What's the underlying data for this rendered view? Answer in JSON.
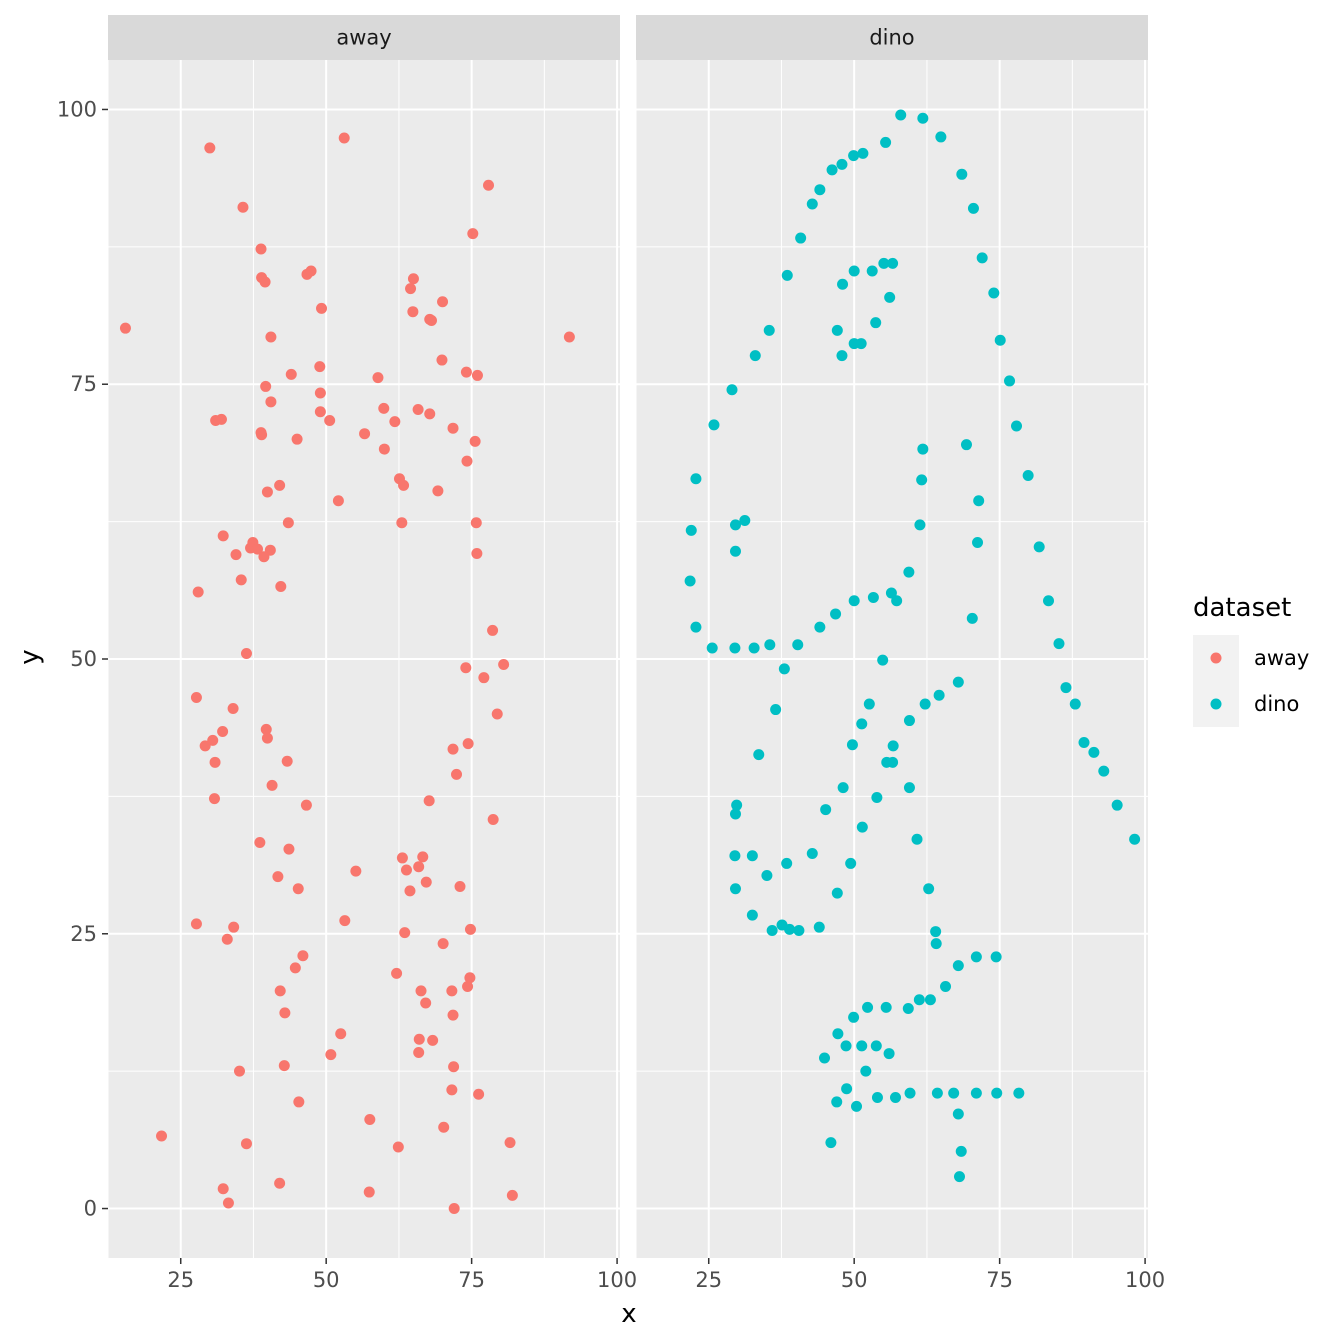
{
  "chart_data": {
    "type": "scatter",
    "facets": [
      "away",
      "dino"
    ],
    "xlabel": "x",
    "ylabel": "y",
    "xlim": [
      12.5,
      100.5
    ],
    "ylim": [
      -4.5,
      104.5
    ],
    "xticks": [
      25,
      50,
      75,
      100
    ],
    "yticks": [
      0,
      25,
      50,
      75,
      100
    ],
    "grid": true,
    "legend": {
      "title": "dataset",
      "position": "right",
      "entries": [
        {
          "label": "away",
          "color": "#F8766D"
        },
        {
          "label": "dino",
          "color": "#00BFC4"
        }
      ]
    },
    "series": [
      {
        "name": "away",
        "color": "#F8766D",
        "points": [
          [
            15.5,
            80.1
          ],
          [
            30.0,
            96.5
          ],
          [
            35.7,
            91.1
          ],
          [
            53.1,
            97.4
          ],
          [
            77.9,
            93.1
          ],
          [
            91.8,
            79.3
          ],
          [
            38.8,
            87.3
          ],
          [
            38.9,
            84.7
          ],
          [
            39.5,
            84.3
          ],
          [
            46.7,
            85.0
          ],
          [
            47.4,
            85.3
          ],
          [
            49.2,
            81.9
          ],
          [
            40.5,
            79.3
          ],
          [
            65.0,
            84.6
          ],
          [
            64.5,
            83.7
          ],
          [
            70.0,
            82.5
          ],
          [
            64.9,
            81.6
          ],
          [
            67.8,
            80.9
          ],
          [
            68.1,
            80.8
          ],
          [
            75.2,
            88.7
          ],
          [
            48.9,
            76.6
          ],
          [
            44.0,
            75.9
          ],
          [
            39.6,
            74.8
          ],
          [
            49.0,
            74.2
          ],
          [
            40.5,
            73.4
          ],
          [
            49.0,
            72.5
          ],
          [
            50.6,
            71.7
          ],
          [
            31.0,
            71.7
          ],
          [
            32.0,
            71.8
          ],
          [
            38.8,
            70.6
          ],
          [
            38.9,
            70.4
          ],
          [
            45.0,
            70.0
          ],
          [
            58.9,
            75.6
          ],
          [
            59.9,
            72.8
          ],
          [
            61.8,
            71.6
          ],
          [
            56.6,
            70.5
          ],
          [
            60.0,
            69.1
          ],
          [
            65.8,
            72.7
          ],
          [
            67.8,
            72.3
          ],
          [
            69.9,
            77.2
          ],
          [
            74.1,
            76.1
          ],
          [
            76.0,
            75.8
          ],
          [
            71.8,
            71.0
          ],
          [
            75.6,
            69.8
          ],
          [
            74.2,
            68.0
          ],
          [
            62.6,
            66.4
          ],
          [
            63.3,
            65.8
          ],
          [
            69.2,
            65.3
          ],
          [
            52.1,
            64.4
          ],
          [
            42.0,
            65.8
          ],
          [
            39.9,
            65.2
          ],
          [
            43.5,
            62.4
          ],
          [
            32.3,
            61.2
          ],
          [
            37.4,
            60.6
          ],
          [
            37.0,
            60.1
          ],
          [
            38.2,
            60.0
          ],
          [
            40.4,
            59.9
          ],
          [
            39.3,
            59.3
          ],
          [
            34.5,
            59.5
          ],
          [
            35.4,
            57.2
          ],
          [
            42.2,
            56.6
          ],
          [
            28.0,
            56.1
          ],
          [
            63.0,
            62.4
          ],
          [
            75.8,
            62.4
          ],
          [
            75.9,
            59.6
          ],
          [
            36.3,
            50.5
          ],
          [
            78.6,
            52.6
          ],
          [
            80.5,
            49.5
          ],
          [
            74.0,
            49.2
          ],
          [
            77.1,
            48.3
          ],
          [
            27.7,
            46.5
          ],
          [
            34.0,
            45.5
          ],
          [
            79.4,
            45.0
          ],
          [
            32.2,
            43.4
          ],
          [
            39.7,
            43.6
          ],
          [
            39.9,
            42.8
          ],
          [
            30.5,
            42.6
          ],
          [
            29.2,
            42.1
          ],
          [
            74.4,
            42.3
          ],
          [
            71.8,
            41.8
          ],
          [
            43.3,
            40.7
          ],
          [
            30.9,
            40.6
          ],
          [
            72.4,
            39.5
          ],
          [
            40.7,
            38.5
          ],
          [
            30.8,
            37.3
          ],
          [
            67.7,
            37.1
          ],
          [
            46.6,
            36.7
          ],
          [
            78.7,
            35.4
          ],
          [
            38.6,
            33.3
          ],
          [
            43.6,
            32.7
          ],
          [
            63.1,
            31.9
          ],
          [
            66.6,
            32.0
          ],
          [
            63.8,
            30.8
          ],
          [
            65.9,
            31.1
          ],
          [
            55.1,
            30.7
          ],
          [
            41.7,
            30.2
          ],
          [
            67.2,
            29.7
          ],
          [
            73.0,
            29.3
          ],
          [
            45.2,
            29.1
          ],
          [
            64.4,
            28.9
          ],
          [
            27.7,
            25.9
          ],
          [
            34.1,
            25.6
          ],
          [
            33.0,
            24.5
          ],
          [
            53.2,
            26.2
          ],
          [
            63.5,
            25.1
          ],
          [
            74.8,
            25.4
          ],
          [
            70.1,
            24.1
          ],
          [
            46.0,
            23.0
          ],
          [
            44.7,
            21.9
          ],
          [
            62.1,
            21.4
          ],
          [
            74.7,
            21.0
          ],
          [
            74.3,
            20.2
          ],
          [
            42.1,
            19.8
          ],
          [
            66.3,
            19.8
          ],
          [
            71.6,
            19.8
          ],
          [
            67.1,
            18.7
          ],
          [
            42.9,
            17.8
          ],
          [
            71.8,
            17.6
          ],
          [
            52.5,
            15.9
          ],
          [
            66.0,
            15.4
          ],
          [
            68.3,
            15.3
          ],
          [
            50.8,
            14.0
          ],
          [
            65.9,
            14.2
          ],
          [
            42.8,
            13.0
          ],
          [
            71.9,
            12.9
          ],
          [
            35.1,
            12.5
          ],
          [
            71.6,
            10.8
          ],
          [
            76.2,
            10.4
          ],
          [
            45.3,
            9.7
          ],
          [
            57.5,
            8.1
          ],
          [
            70.2,
            7.4
          ],
          [
            21.7,
            6.6
          ],
          [
            36.3,
            5.9
          ],
          [
            62.4,
            5.6
          ],
          [
            81.6,
            6.0
          ],
          [
            42.0,
            2.3
          ],
          [
            32.3,
            1.8
          ],
          [
            57.4,
            1.5
          ],
          [
            82.0,
            1.2
          ],
          [
            33.2,
            0.5
          ],
          [
            72.0,
            0.0
          ]
        ]
      },
      {
        "name": "dino",
        "color": "#00BFC4",
        "points": [
          [
            58.0,
            99.5
          ],
          [
            61.8,
            99.2
          ],
          [
            64.9,
            97.5
          ],
          [
            55.4,
            97.0
          ],
          [
            51.5,
            96.0
          ],
          [
            49.9,
            95.8
          ],
          [
            47.9,
            95.0
          ],
          [
            46.2,
            94.5
          ],
          [
            68.5,
            94.1
          ],
          [
            44.1,
            92.7
          ],
          [
            42.8,
            91.4
          ],
          [
            70.5,
            91.0
          ],
          [
            40.8,
            88.3
          ],
          [
            72.0,
            86.5
          ],
          [
            55.1,
            86.0
          ],
          [
            56.6,
            86.0
          ],
          [
            50.0,
            85.3
          ],
          [
            53.1,
            85.3
          ],
          [
            38.5,
            84.9
          ],
          [
            48.0,
            84.1
          ],
          [
            74.0,
            83.3
          ],
          [
            56.1,
            82.9
          ],
          [
            53.7,
            80.6
          ],
          [
            35.4,
            79.9
          ],
          [
            47.1,
            79.9
          ],
          [
            50.0,
            78.7
          ],
          [
            51.2,
            78.7
          ],
          [
            75.1,
            79.0
          ],
          [
            33.0,
            77.6
          ],
          [
            47.9,
            77.6
          ],
          [
            76.7,
            75.3
          ],
          [
            29.0,
            74.5
          ],
          [
            25.9,
            71.3
          ],
          [
            77.9,
            71.2
          ],
          [
            69.3,
            69.5
          ],
          [
            61.8,
            69.1
          ],
          [
            79.9,
            66.7
          ],
          [
            22.8,
            66.4
          ],
          [
            61.6,
            66.3
          ],
          [
            71.4,
            64.4
          ],
          [
            31.2,
            62.6
          ],
          [
            29.6,
            62.2
          ],
          [
            61.3,
            62.2
          ],
          [
            22.0,
            61.7
          ],
          [
            81.8,
            60.2
          ],
          [
            71.2,
            60.6
          ],
          [
            29.6,
            59.8
          ],
          [
            59.4,
            57.9
          ],
          [
            21.8,
            57.1
          ],
          [
            56.4,
            56.0
          ],
          [
            53.3,
            55.6
          ],
          [
            57.3,
            55.3
          ],
          [
            50.0,
            55.3
          ],
          [
            83.4,
            55.3
          ],
          [
            46.8,
            54.1
          ],
          [
            70.3,
            53.7
          ],
          [
            44.1,
            52.9
          ],
          [
            22.8,
            52.9
          ],
          [
            85.2,
            51.4
          ],
          [
            35.5,
            51.3
          ],
          [
            40.3,
            51.3
          ],
          [
            25.6,
            51.0
          ],
          [
            29.5,
            51.0
          ],
          [
            32.8,
            51.0
          ],
          [
            54.9,
            49.9
          ],
          [
            67.9,
            47.9
          ],
          [
            86.4,
            47.4
          ],
          [
            38.0,
            49.1
          ],
          [
            64.6,
            46.7
          ],
          [
            88.0,
            45.9
          ],
          [
            52.6,
            45.9
          ],
          [
            62.2,
            45.9
          ],
          [
            36.5,
            45.4
          ],
          [
            59.5,
            44.4
          ],
          [
            51.3,
            44.1
          ],
          [
            89.5,
            42.4
          ],
          [
            49.7,
            42.2
          ],
          [
            56.7,
            42.1
          ],
          [
            91.2,
            41.5
          ],
          [
            33.6,
            41.3
          ],
          [
            55.6,
            40.6
          ],
          [
            56.6,
            40.6
          ],
          [
            92.9,
            39.8
          ],
          [
            48.1,
            38.3
          ],
          [
            59.5,
            38.3
          ],
          [
            53.9,
            37.4
          ],
          [
            95.2,
            36.7
          ],
          [
            29.8,
            36.7
          ],
          [
            45.1,
            36.3
          ],
          [
            29.6,
            35.9
          ],
          [
            51.4,
            34.7
          ],
          [
            60.8,
            33.6
          ],
          [
            98.2,
            33.6
          ],
          [
            42.8,
            32.3
          ],
          [
            29.5,
            32.1
          ],
          [
            32.5,
            32.1
          ],
          [
            38.4,
            31.4
          ],
          [
            49.4,
            31.4
          ],
          [
            35.0,
            30.3
          ],
          [
            62.8,
            29.1
          ],
          [
            29.6,
            29.1
          ],
          [
            47.1,
            28.7
          ],
          [
            32.5,
            26.7
          ],
          [
            44.0,
            25.6
          ],
          [
            37.6,
            25.8
          ],
          [
            38.9,
            25.4
          ],
          [
            40.5,
            25.3
          ],
          [
            35.9,
            25.3
          ],
          [
            64.0,
            25.2
          ],
          [
            64.1,
            24.1
          ],
          [
            74.4,
            22.9
          ],
          [
            71.0,
            22.9
          ],
          [
            67.9,
            22.1
          ],
          [
            65.7,
            20.2
          ],
          [
            63.1,
            19.0
          ],
          [
            61.2,
            19.0
          ],
          [
            59.3,
            18.2
          ],
          [
            55.5,
            18.3
          ],
          [
            52.3,
            18.3
          ],
          [
            49.9,
            17.4
          ],
          [
            47.2,
            15.9
          ],
          [
            48.6,
            14.8
          ],
          [
            51.3,
            14.8
          ],
          [
            53.8,
            14.8
          ],
          [
            56.0,
            14.1
          ],
          [
            44.9,
            13.7
          ],
          [
            52.0,
            12.5
          ],
          [
            48.7,
            10.9
          ],
          [
            59.6,
            10.5
          ],
          [
            64.3,
            10.5
          ],
          [
            67.1,
            10.5
          ],
          [
            71.0,
            10.5
          ],
          [
            74.5,
            10.5
          ],
          [
            78.3,
            10.5
          ],
          [
            54.0,
            10.1
          ],
          [
            57.1,
            10.1
          ],
          [
            47.0,
            9.7
          ],
          [
            50.4,
            9.3
          ],
          [
            67.9,
            8.6
          ],
          [
            46.0,
            6.0
          ],
          [
            68.4,
            5.2
          ],
          [
            68.1,
            2.9
          ]
        ]
      }
    ]
  }
}
